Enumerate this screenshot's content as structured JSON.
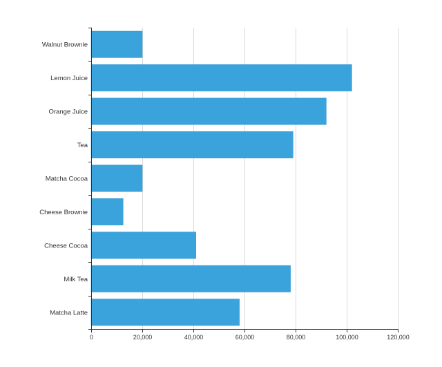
{
  "chart_data": {
    "type": "bar",
    "orientation": "horizontal",
    "categories": [
      "Walnut Brownie",
      "Lemon Juice",
      "Orange Juice",
      "Tea",
      "Matcha Cocoa",
      "Cheese Brownie",
      "Cheese Cocoa",
      "Milk Tea",
      "Matcha Latte"
    ],
    "values": [
      20000,
      102000,
      92000,
      79000,
      20000,
      12500,
      41000,
      78000,
      58000
    ],
    "xlim": [
      0,
      120000
    ],
    "x_ticks": [
      0,
      20000,
      40000,
      60000,
      80000,
      100000,
      120000
    ],
    "x_tick_labels": [
      "0",
      "20,000",
      "40,000",
      "60,000",
      "80,000",
      "100,000",
      "120,000"
    ],
    "title": "",
    "xlabel": "",
    "ylabel": "",
    "grid": "vertical",
    "bar_color": "#3ba3dc"
  }
}
